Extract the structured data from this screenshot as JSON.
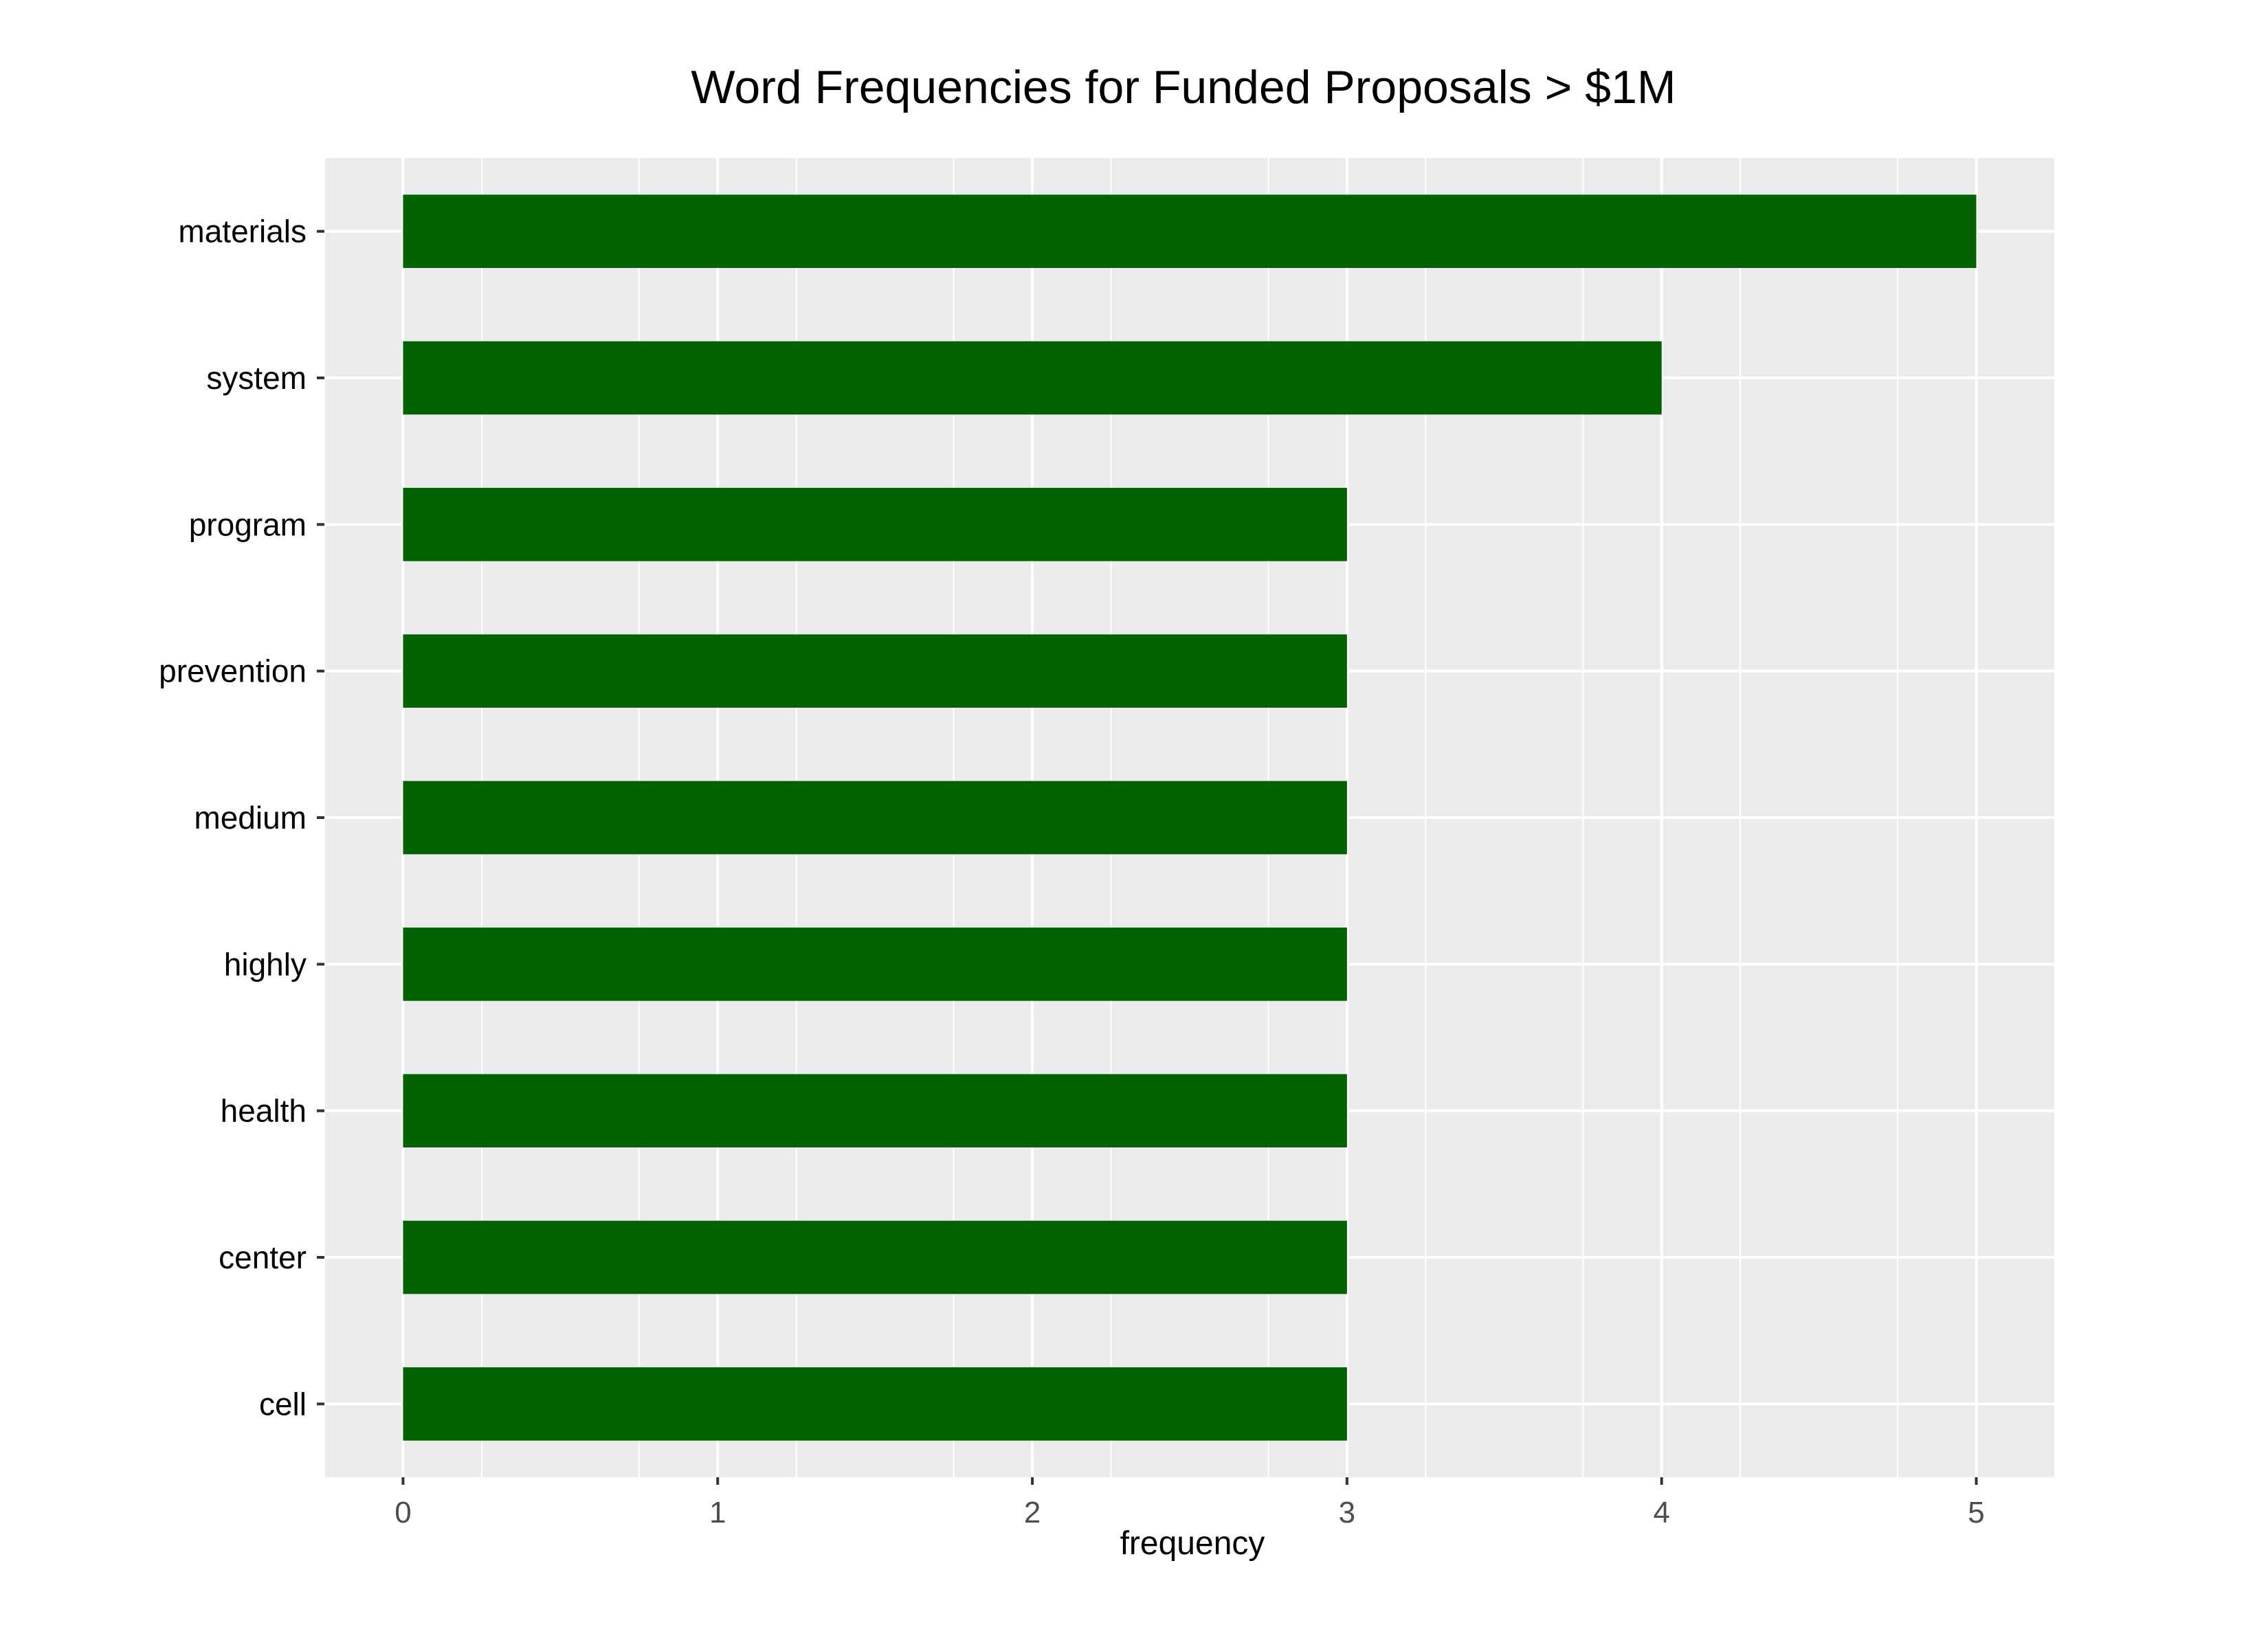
{
  "chart_data": {
    "type": "bar",
    "orientation": "horizontal",
    "title": "Word Frequencies for Funded Proposals > $1M",
    "xlabel": "frequency",
    "ylabel": "",
    "categories": [
      "materials",
      "system",
      "program",
      "prevention",
      "medium",
      "highly",
      "health",
      "center",
      "cell"
    ],
    "values": [
      5,
      4,
      3,
      3,
      3,
      3,
      3,
      3,
      3
    ],
    "xlim": [
      -0.25,
      5.25
    ],
    "xticks": [
      "0",
      "1",
      "2",
      "3",
      "4",
      "5"
    ],
    "grid": true,
    "legend": "none",
    "colors": {
      "bar": "#036303",
      "panel": "#ebebeb",
      "grid": "#ffffff"
    }
  }
}
